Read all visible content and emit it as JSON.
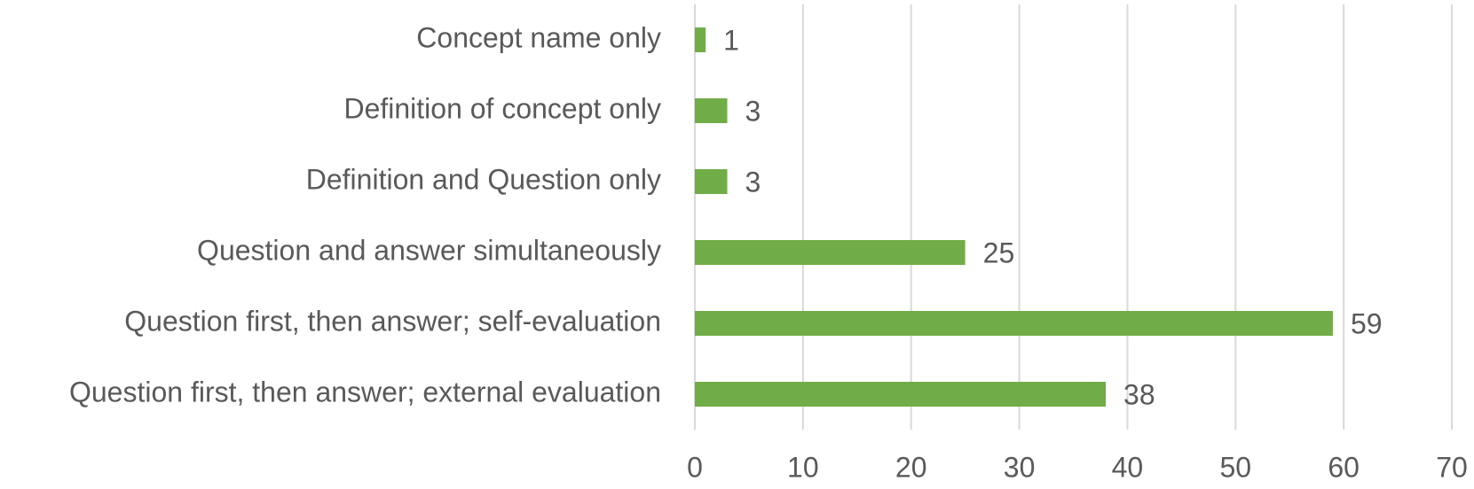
{
  "chart_data": {
    "type": "hbar",
    "categories": [
      "Concept name only",
      "Definition of concept only",
      "Definition and Question only",
      "Question and answer simultaneously",
      "Question first, then answer; self-evaluation",
      "Question first, then answer; external evaluation"
    ],
    "values": [
      1,
      3,
      3,
      25,
      59,
      38
    ],
    "color": "#70ad47",
    "xlim": [
      0,
      70
    ],
    "xticks": [
      0,
      10,
      20,
      30,
      40,
      50,
      60,
      70
    ],
    "grid": true,
    "data_labels": true
  }
}
